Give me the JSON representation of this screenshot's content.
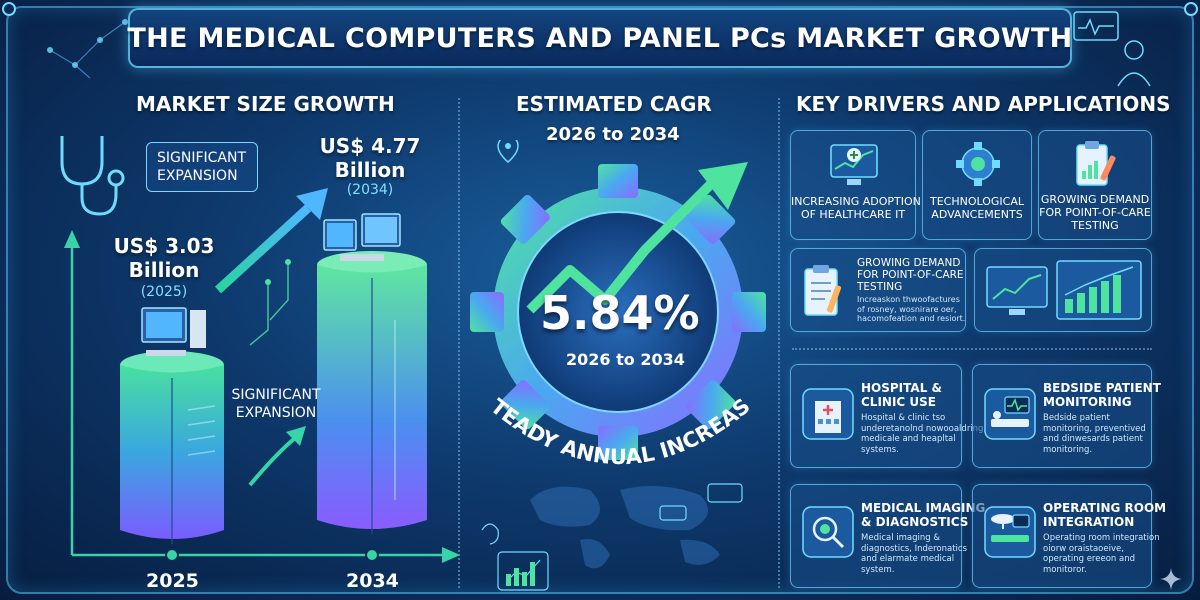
{
  "title": "THE MEDICAL COMPUTERS AND PANEL PCs MARKET GROWTH",
  "left": {
    "heading": "MARKET SIZE GROWTH",
    "callout_top": [
      "SIGNIFICANT",
      "EXPANSION"
    ],
    "value_2025": [
      "US$ 3.03",
      "Billion"
    ],
    "year_2025_paren": "(2025)",
    "value_2034": [
      "US$ 4.77",
      "Billion"
    ],
    "year_2034_paren": "(2034)",
    "mid_label": [
      "SIGNIFICANT",
      "EXPANSION"
    ],
    "axis_year_1": "2025",
    "axis_year_2": "2034"
  },
  "center": {
    "heading": "ESTIMATED CAGR",
    "sub_heading": "2026 to 2034",
    "cagr_value": "5.84%",
    "cagr_period": "2026 to 2034",
    "arc_text": "STEADY ANNUAL INCREASE"
  },
  "right": {
    "heading": "KEY DRIVERS AND APPLICATIONS",
    "drivers": [
      {
        "title": [
          "INCREASING ADOPTION",
          "OF HEALTHCARE IT"
        ],
        "icon": "monitor-plus-icon"
      },
      {
        "title": [
          "TECHNOLOGICAL",
          "ADVANCEMENTS"
        ],
        "icon": "gear-circuit-icon"
      },
      {
        "title": [
          "GROWING DEMAND",
          "FOR POINT-OF-CARE",
          "TESTING"
        ],
        "icon": "clipboard-test-icon"
      }
    ],
    "driver_wide": {
      "title": [
        "GROWING DEMAND",
        "FOR POINT-OF-CARE",
        "TESTING"
      ],
      "desc": [
        "Increaskon thwoofactures",
        "of rosney, wosnirare oer,",
        "hacomofeation and resiort."
      ],
      "icon": "clipboard-pen-icon"
    },
    "applications": [
      {
        "title": [
          "HOSPITAL &",
          "CLINIC USE"
        ],
        "desc": [
          "Hospital & clinic tso",
          "underetanolnd nowooaldring,",
          "medicale and heapltal",
          "systems."
        ],
        "icon": "hospital-icon"
      },
      {
        "title": [
          "BEDSIDE PATIENT",
          "MONITORING"
        ],
        "desc": [
          "Bedside patient",
          "monitoring, preventived",
          "and dinwesards patient",
          "monitoring."
        ],
        "icon": "bedside-monitor-icon"
      },
      {
        "title": [
          "MEDICAL IMAGING",
          "& DIAGNOSTICS"
        ],
        "desc": [
          "Medical imaging &",
          "diagnostics, Inderonatics",
          "and elarmate medical",
          "system."
        ],
        "icon": "imaging-icon"
      },
      {
        "title": [
          "OPERATING ROOM",
          "INTEGRATION"
        ],
        "desc": [
          "Operating room integration",
          "oiorw oraistaoeive,",
          "operating ereeon and",
          "monitoror."
        ],
        "icon": "operating-room-icon"
      }
    ]
  },
  "colors": {
    "bg_dark": "#071d40",
    "bg_mid": "#1a5f9e",
    "accent_cyan": "#6fdcff",
    "accent_green": "#4fe3a0",
    "accent_purple": "#8a6cff"
  }
}
